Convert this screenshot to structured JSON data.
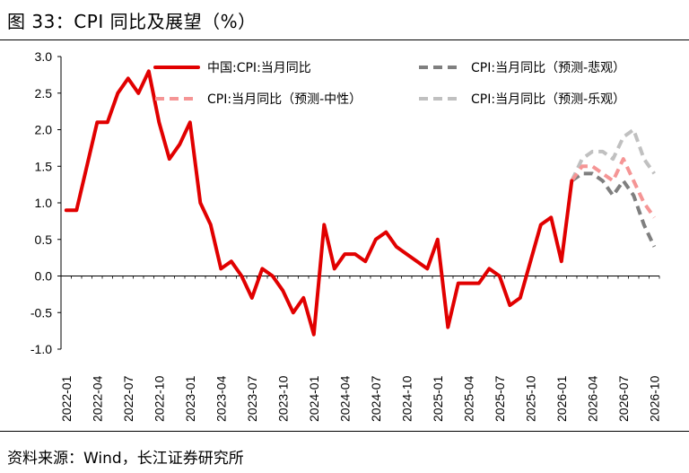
{
  "header": {
    "title": "图 33：CPI 同比及展望（%）"
  },
  "footer": {
    "source": "资料来源：Wind，长江证券研究所"
  },
  "chart_data": {
    "type": "line",
    "title": "CPI 同比及展望（%）",
    "xlabel": "",
    "ylabel": "",
    "ylim": [
      -1.0,
      3.0
    ],
    "yticks": [
      "3.0",
      "2.5",
      "2.0",
      "1.5",
      "1.0",
      "0.5",
      "0.0",
      "-0.5",
      "-1.0"
    ],
    "xticks": [
      "2022-01",
      "2022-04",
      "2022-07",
      "2022-10",
      "2023-01",
      "2023-04",
      "2023-07",
      "2023-10",
      "2024-01",
      "2024-04",
      "2024-07",
      "2024-10",
      "2025-01",
      "2025-04",
      "2025-07",
      "2025-10",
      "2026-01",
      "2026-04",
      "2026-07",
      "2026-10"
    ],
    "start_month": "2022-01",
    "series": [
      {
        "name": "中国:CPI:当月同比",
        "color": "#e10000",
        "dash": "solid",
        "start_index": 0,
        "values": [
          0.9,
          0.9,
          1.5,
          2.1,
          2.1,
          2.5,
          2.7,
          2.5,
          2.8,
          2.1,
          1.6,
          1.8,
          2.1,
          1.0,
          0.7,
          0.1,
          0.2,
          0.0,
          -0.3,
          0.1,
          0.0,
          -0.2,
          -0.5,
          -0.3,
          -0.8,
          0.7,
          0.1,
          0.3,
          0.3,
          0.2,
          0.5,
          0.6,
          0.4,
          0.3,
          0.2,
          0.1,
          0.5,
          -0.7,
          -0.1,
          -0.1,
          -0.1,
          0.1,
          0.0,
          -0.4,
          -0.3,
          0.2,
          0.7,
          0.8,
          0.2,
          1.3
        ]
      },
      {
        "name": "CPI:当月同比（预测-中性）",
        "color": "#f59595",
        "dash": "dash",
        "start_index": 49,
        "values": [
          1.3,
          1.5,
          1.5,
          1.4,
          1.3,
          1.6,
          1.3,
          1.0,
          0.8
        ]
      },
      {
        "name": "CPI:当月同比（预测-悲观）",
        "color": "#7f7f7f",
        "dash": "dash",
        "start_index": 49,
        "values": [
          1.3,
          1.4,
          1.4,
          1.3,
          1.1,
          1.3,
          1.1,
          0.7,
          0.4
        ]
      },
      {
        "name": "CPI:当月同比（预测-乐观）",
        "color": "#c0c0c0",
        "dash": "dash",
        "start_index": 49,
        "values": [
          1.3,
          1.6,
          1.7,
          1.7,
          1.6,
          1.9,
          2.0,
          1.6,
          1.4
        ]
      }
    ],
    "legend": [
      {
        "label": "中国:CPI:当月同比",
        "series_index": 0
      },
      {
        "label": "CPI:当月同比（预测-悲观）",
        "series_index": 2
      },
      {
        "label": "CPI:当月同比（预测-中性）",
        "series_index": 1
      },
      {
        "label": "CPI:当月同比（预测-乐观）",
        "series_index": 3
      }
    ],
    "grid": false
  }
}
